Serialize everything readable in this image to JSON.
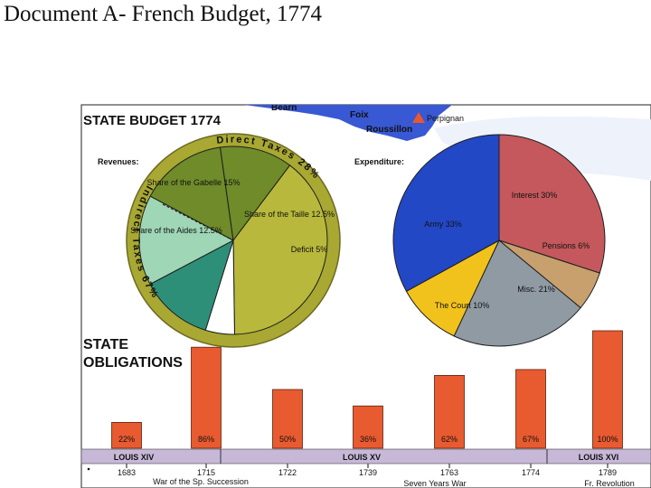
{
  "slide_title": "Document A- French Budget, 1774",
  "map": {
    "labels": [
      "Bearn",
      "Foix",
      "Roussillon",
      "Perpignan"
    ]
  },
  "chart_data": [
    {
      "type": "pie",
      "title": "STATE BUDGET 1774",
      "subtitle": "Revenues:",
      "slices": [
        {
          "label": "Share of the Gabelle 15%",
          "value": 15,
          "color": "#6f8b2a"
        },
        {
          "label": "Share of the Aides 12.5%",
          "value": 12.5,
          "color": "#6f8b2a"
        },
        {
          "label": "Indirect Taxes 67%",
          "value": 39.5,
          "color": "#b8b83c"
        },
        {
          "label": "Deficit 5%",
          "value": 5,
          "color": "#ffffff"
        },
        {
          "label": "Share of the Taille 12.5%",
          "value": 12.5,
          "color": "#2e8f78"
        },
        {
          "label": "Direct Taxes 28%",
          "value": 15.5,
          "color": "#9fd6b6"
        }
      ],
      "groups": [
        {
          "label": "Direct Taxes 28%",
          "value": 28
        },
        {
          "label": "Indirect Taxes 67%",
          "value": 67
        }
      ]
    },
    {
      "type": "pie",
      "subtitle": "Expenditure:",
      "slices": [
        {
          "label": "Interest 30%",
          "value": 30,
          "color": "#c4585c"
        },
        {
          "label": "Pensions 6%",
          "value": 6,
          "color": "#c7a06e"
        },
        {
          "label": "Misc. 21%",
          "value": 21,
          "color": "#8f9aa3"
        },
        {
          "label": "The Court 10%",
          "value": 10,
          "color": "#f2c21c"
        },
        {
          "label": "Army 33%",
          "value": 33,
          "color": "#2348c6"
        }
      ]
    },
    {
      "type": "bar",
      "title": "STATE OBLIGATIONS",
      "categories": [
        "1683",
        "1715",
        "1722",
        "1739",
        "1763",
        "1774",
        "1789"
      ],
      "values": [
        22,
        86,
        50,
        36,
        62,
        67,
        100
      ],
      "labels": [
        "22%",
        "86%",
        "50%",
        "36%",
        "62%",
        "67%",
        "100%"
      ],
      "reigns": [
        "LOUIS XIV",
        "LOUIS XV",
        "LOUIS XVI"
      ],
      "events": [
        "War of the Sp. Succession",
        "Seven Years War",
        "Fr. Revolution"
      ],
      "bar_color": "#e85a30",
      "ylim": [
        0,
        100
      ]
    }
  ]
}
